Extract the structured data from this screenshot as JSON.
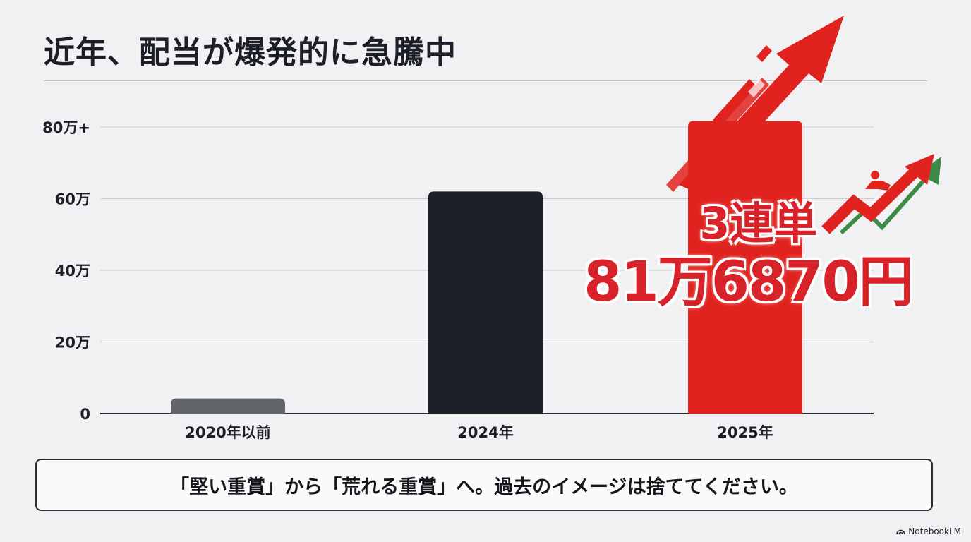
{
  "title": "近年、配当が爆発的に急騰中",
  "chart_data": {
    "type": "bar",
    "categories": [
      "2020年以前",
      "2024年",
      "2025年"
    ],
    "values": [
      42000,
      620000,
      816870
    ],
    "yticks": [
      "0",
      "20万",
      "40万",
      "60万",
      "80万+"
    ],
    "ylim": [
      0,
      800000
    ],
    "grid": true,
    "colors": [
      "#62646b",
      "#1e2029",
      "#e1231f"
    ]
  },
  "highlight": {
    "line1": "3連単",
    "line2": "81万6870円"
  },
  "callout": "「堅い重賞」から「荒れる重賞」へ。過去のイメージは捨ててください。",
  "brand": "NotebookLM",
  "accent": "#d8222a",
  "icons": [
    "rising-arrow-icon",
    "jockey-horse-icon",
    "zigzag-arrow-icon",
    "notebooklm-logo-icon"
  ]
}
